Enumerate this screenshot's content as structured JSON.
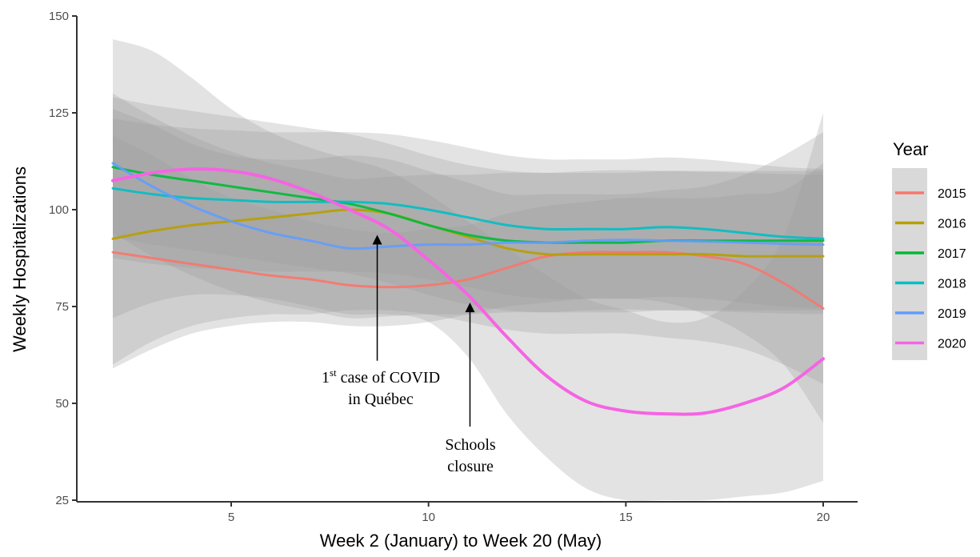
{
  "chart_data": {
    "type": "line",
    "xlabel": "Week 2 (January) to Week 20 (May)",
    "ylabel": "Weekly Hospitalizations",
    "xlim": [
      1.2,
      21.0
    ],
    "ylim": [
      24,
      150
    ],
    "x_ticks": [
      5,
      10,
      15,
      20
    ],
    "x_tick_labels": [
      "5",
      "10",
      "15",
      "20"
    ],
    "y_ticks": [
      25,
      50,
      75,
      100,
      125,
      150
    ],
    "y_tick_labels": [
      "25",
      "50",
      "75",
      "100",
      "125",
      "150"
    ],
    "grid": false,
    "legend_title": "Year",
    "legend_position": "right",
    "x": [
      2,
      3,
      4,
      5,
      6,
      7,
      8,
      9,
      10,
      11,
      12,
      13,
      14,
      15,
      16,
      17,
      18,
      19,
      20
    ],
    "series": [
      {
        "name": "2015",
        "color": "#F8766D",
        "values": [
          89,
          87.5,
          86,
          84.5,
          83,
          82,
          80.5,
          80,
          80.5,
          82,
          85,
          88,
          89,
          89,
          89,
          88,
          86,
          81,
          74.5
        ],
        "band": [
          [
            59,
            119
          ],
          [
            64,
            114
          ],
          [
            68,
            108
          ],
          [
            70,
            103
          ],
          [
            71,
            100
          ],
          [
            71,
            97
          ],
          [
            70,
            95
          ],
          [
            70,
            94
          ],
          [
            71,
            95
          ],
          [
            73,
            96
          ],
          [
            75,
            99
          ],
          [
            76,
            101
          ],
          [
            77,
            102
          ],
          [
            77,
            103
          ],
          [
            76,
            103
          ],
          [
            73,
            103
          ],
          [
            68,
            104
          ],
          [
            60,
            105
          ],
          [
            45,
            112
          ]
        ]
      },
      {
        "name": "2016",
        "color": "#B79F00",
        "values": [
          92.5,
          94.5,
          96,
          97,
          98,
          99,
          100,
          99,
          96,
          93,
          90,
          88.5,
          88.5,
          88.5,
          88.5,
          88.5,
          88,
          88,
          88
        ],
        "band": [
          [
            60,
            126
          ],
          [
            66,
            122
          ],
          [
            70,
            117
          ],
          [
            72,
            114
          ],
          [
            73,
            113
          ],
          [
            73,
            113
          ],
          [
            74,
            114
          ],
          [
            74,
            113
          ],
          [
            73,
            110
          ],
          [
            71,
            107
          ],
          [
            69,
            104
          ],
          [
            68,
            104
          ],
          [
            68,
            104
          ],
          [
            68,
            104
          ],
          [
            67,
            105
          ],
          [
            66,
            106
          ],
          [
            64,
            109
          ],
          [
            60,
            114
          ],
          [
            55,
            120
          ]
        ]
      },
      {
        "name": "2017",
        "color": "#00BA38",
        "values": [
          111,
          109,
          107.5,
          106,
          104.5,
          103,
          101.5,
          99,
          96,
          93.5,
          92,
          91.5,
          91.5,
          91.5,
          92,
          92,
          92,
          92,
          92
        ]
      },
      {
        "name": "2018",
        "color": "#00BFC4",
        "values": [
          105.5,
          104,
          103,
          102.5,
          102,
          102,
          102,
          101.5,
          100,
          98,
          96,
          95,
          95,
          95,
          95.5,
          95,
          94,
          93,
          92.5
        ]
      },
      {
        "name": "2019",
        "color": "#619CFF",
        "values": [
          112,
          106,
          101,
          97,
          94,
          92,
          90,
          90.5,
          91,
          91,
          91.5,
          91.5,
          92,
          92.2,
          92,
          91.8,
          91.5,
          91.2,
          91
        ]
      },
      {
        "name": "2020",
        "color": "#F564E3",
        "values": [
          107.5,
          109.5,
          110.5,
          110,
          108,
          104.5,
          100,
          95,
          87,
          78,
          67,
          57,
          50.5,
          48,
          47.3,
          47.5,
          50,
          54,
          61.5
        ],
        "band": [
          [
            72,
            144
          ],
          [
            76,
            141
          ],
          [
            78,
            134
          ],
          [
            78,
            126
          ],
          [
            77,
            120
          ],
          [
            75,
            116
          ],
          [
            73,
            113
          ],
          [
            73,
            110
          ],
          [
            71,
            104
          ],
          [
            62,
            97
          ],
          [
            47,
            90
          ],
          [
            36,
            83
          ],
          [
            28,
            77
          ],
          [
            25,
            74
          ],
          [
            25,
            71
          ],
          [
            25,
            72
          ],
          [
            26,
            79
          ],
          [
            27,
            93
          ],
          [
            30,
            125
          ]
        ]
      }
    ],
    "annotations": [
      {
        "text_lines": [
          "1st case of COVID",
          "in Québec"
        ],
        "superscript": "st",
        "x": 8.7,
        "arrow_from_y": 61,
        "arrow_to_y": 93.5
      },
      {
        "text_lines": [
          "Schools",
          "closure"
        ],
        "x": 11.05,
        "arrow_from_y": 44,
        "arrow_to_y": 76
      }
    ]
  },
  "annotation_1": {
    "num": "1",
    "sup": "st",
    "rest": " case of COVID",
    "line2": "in Québec"
  },
  "annotation_2": {
    "line1": "Schools",
    "line2": "closure"
  }
}
